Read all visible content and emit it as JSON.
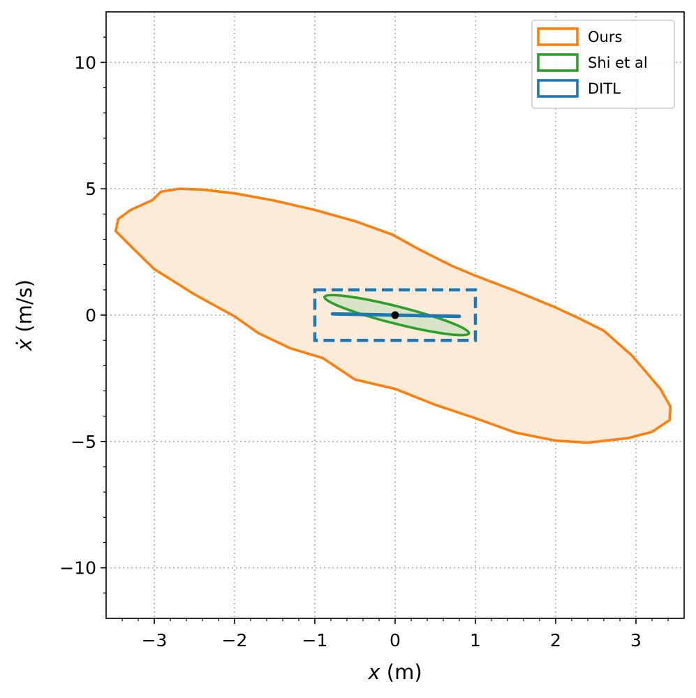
{
  "chart_data": {
    "type": "region-plot",
    "title": "",
    "xlabel_symbol": "x",
    "xlabel_unit": " (m)",
    "ylabel_symbol": "ẋ",
    "ylabel_unit": " (m/s)",
    "xlim": [
      -3.6,
      3.6
    ],
    "ylim": [
      -12,
      12
    ],
    "xticks": [
      -3,
      -2,
      -1,
      0,
      1,
      2,
      3
    ],
    "xtick_labels": [
      "−3",
      "−2",
      "−1",
      "0",
      "1",
      "2",
      "3"
    ],
    "yticks": [
      -10,
      -5,
      0,
      5,
      10
    ],
    "ytick_labels": [
      "−10",
      "−5",
      "0",
      "5",
      "10"
    ],
    "grid": true,
    "legend_position": "top-right",
    "series": [
      {
        "name": "Ours",
        "kind": "filled-closed-curve",
        "color": "#ff7f0e",
        "fill": "#fdebd9",
        "points": [
          [
            -3.02,
            4.56
          ],
          [
            -2.92,
            4.88
          ],
          [
            -2.7,
            5.0
          ],
          [
            -2.4,
            4.97
          ],
          [
            -2.0,
            4.82
          ],
          [
            -1.5,
            4.53
          ],
          [
            -1.0,
            4.16
          ],
          [
            -0.5,
            3.72
          ],
          [
            -0.03,
            3.18
          ],
          [
            0.3,
            2.6
          ],
          [
            0.7,
            1.96
          ],
          [
            1.0,
            1.56
          ],
          [
            1.5,
            0.95
          ],
          [
            2.0,
            0.3
          ],
          [
            2.3,
            -0.14
          ],
          [
            2.6,
            -0.62
          ],
          [
            2.95,
            -1.6
          ],
          [
            3.3,
            -2.9
          ],
          [
            3.43,
            -3.62
          ],
          [
            3.42,
            -4.15
          ],
          [
            3.2,
            -4.62
          ],
          [
            2.9,
            -4.87
          ],
          [
            2.4,
            -5.05
          ],
          [
            2.0,
            -4.97
          ],
          [
            1.5,
            -4.65
          ],
          [
            1.0,
            -4.08
          ],
          [
            0.5,
            -3.55
          ],
          [
            0.0,
            -2.92
          ],
          [
            -0.5,
            -2.55
          ],
          [
            -0.9,
            -1.7
          ],
          [
            -1.3,
            -1.32
          ],
          [
            -1.7,
            -0.72
          ],
          [
            -2.0,
            -0.05
          ],
          [
            -2.5,
            0.82
          ],
          [
            -3.0,
            1.82
          ],
          [
            -3.3,
            2.75
          ],
          [
            -3.48,
            3.33
          ],
          [
            -3.45,
            3.8
          ],
          [
            -3.3,
            4.15
          ],
          [
            -3.02,
            4.56
          ]
        ]
      },
      {
        "name": "Shi et al",
        "kind": "ellipse",
        "color": "#2ca02c",
        "fill": "#d8e3c8",
        "center": [
          0.02,
          0.0
        ],
        "endpoints": [
          [
            -0.88,
            0.72
          ],
          [
            0.92,
            -0.72
          ]
        ],
        "minor_half_width": 0.08
      },
      {
        "name": "DITL",
        "kind": "box-and-segment",
        "color": "#1f77b4",
        "box": {
          "x": [
            -1,
            1
          ],
          "y": [
            -1,
            1
          ]
        },
        "segment": [
          [
            -0.78,
            0.05
          ],
          [
            0.8,
            -0.05
          ]
        ]
      }
    ],
    "origin_marker": [
      0,
      0
    ]
  },
  "legend": {
    "items": [
      {
        "label": "Ours",
        "color": "#ff7f0e"
      },
      {
        "label": "Shi et al",
        "color": "#2ca02c"
      },
      {
        "label": "DITL",
        "color": "#1f77b4"
      }
    ]
  }
}
